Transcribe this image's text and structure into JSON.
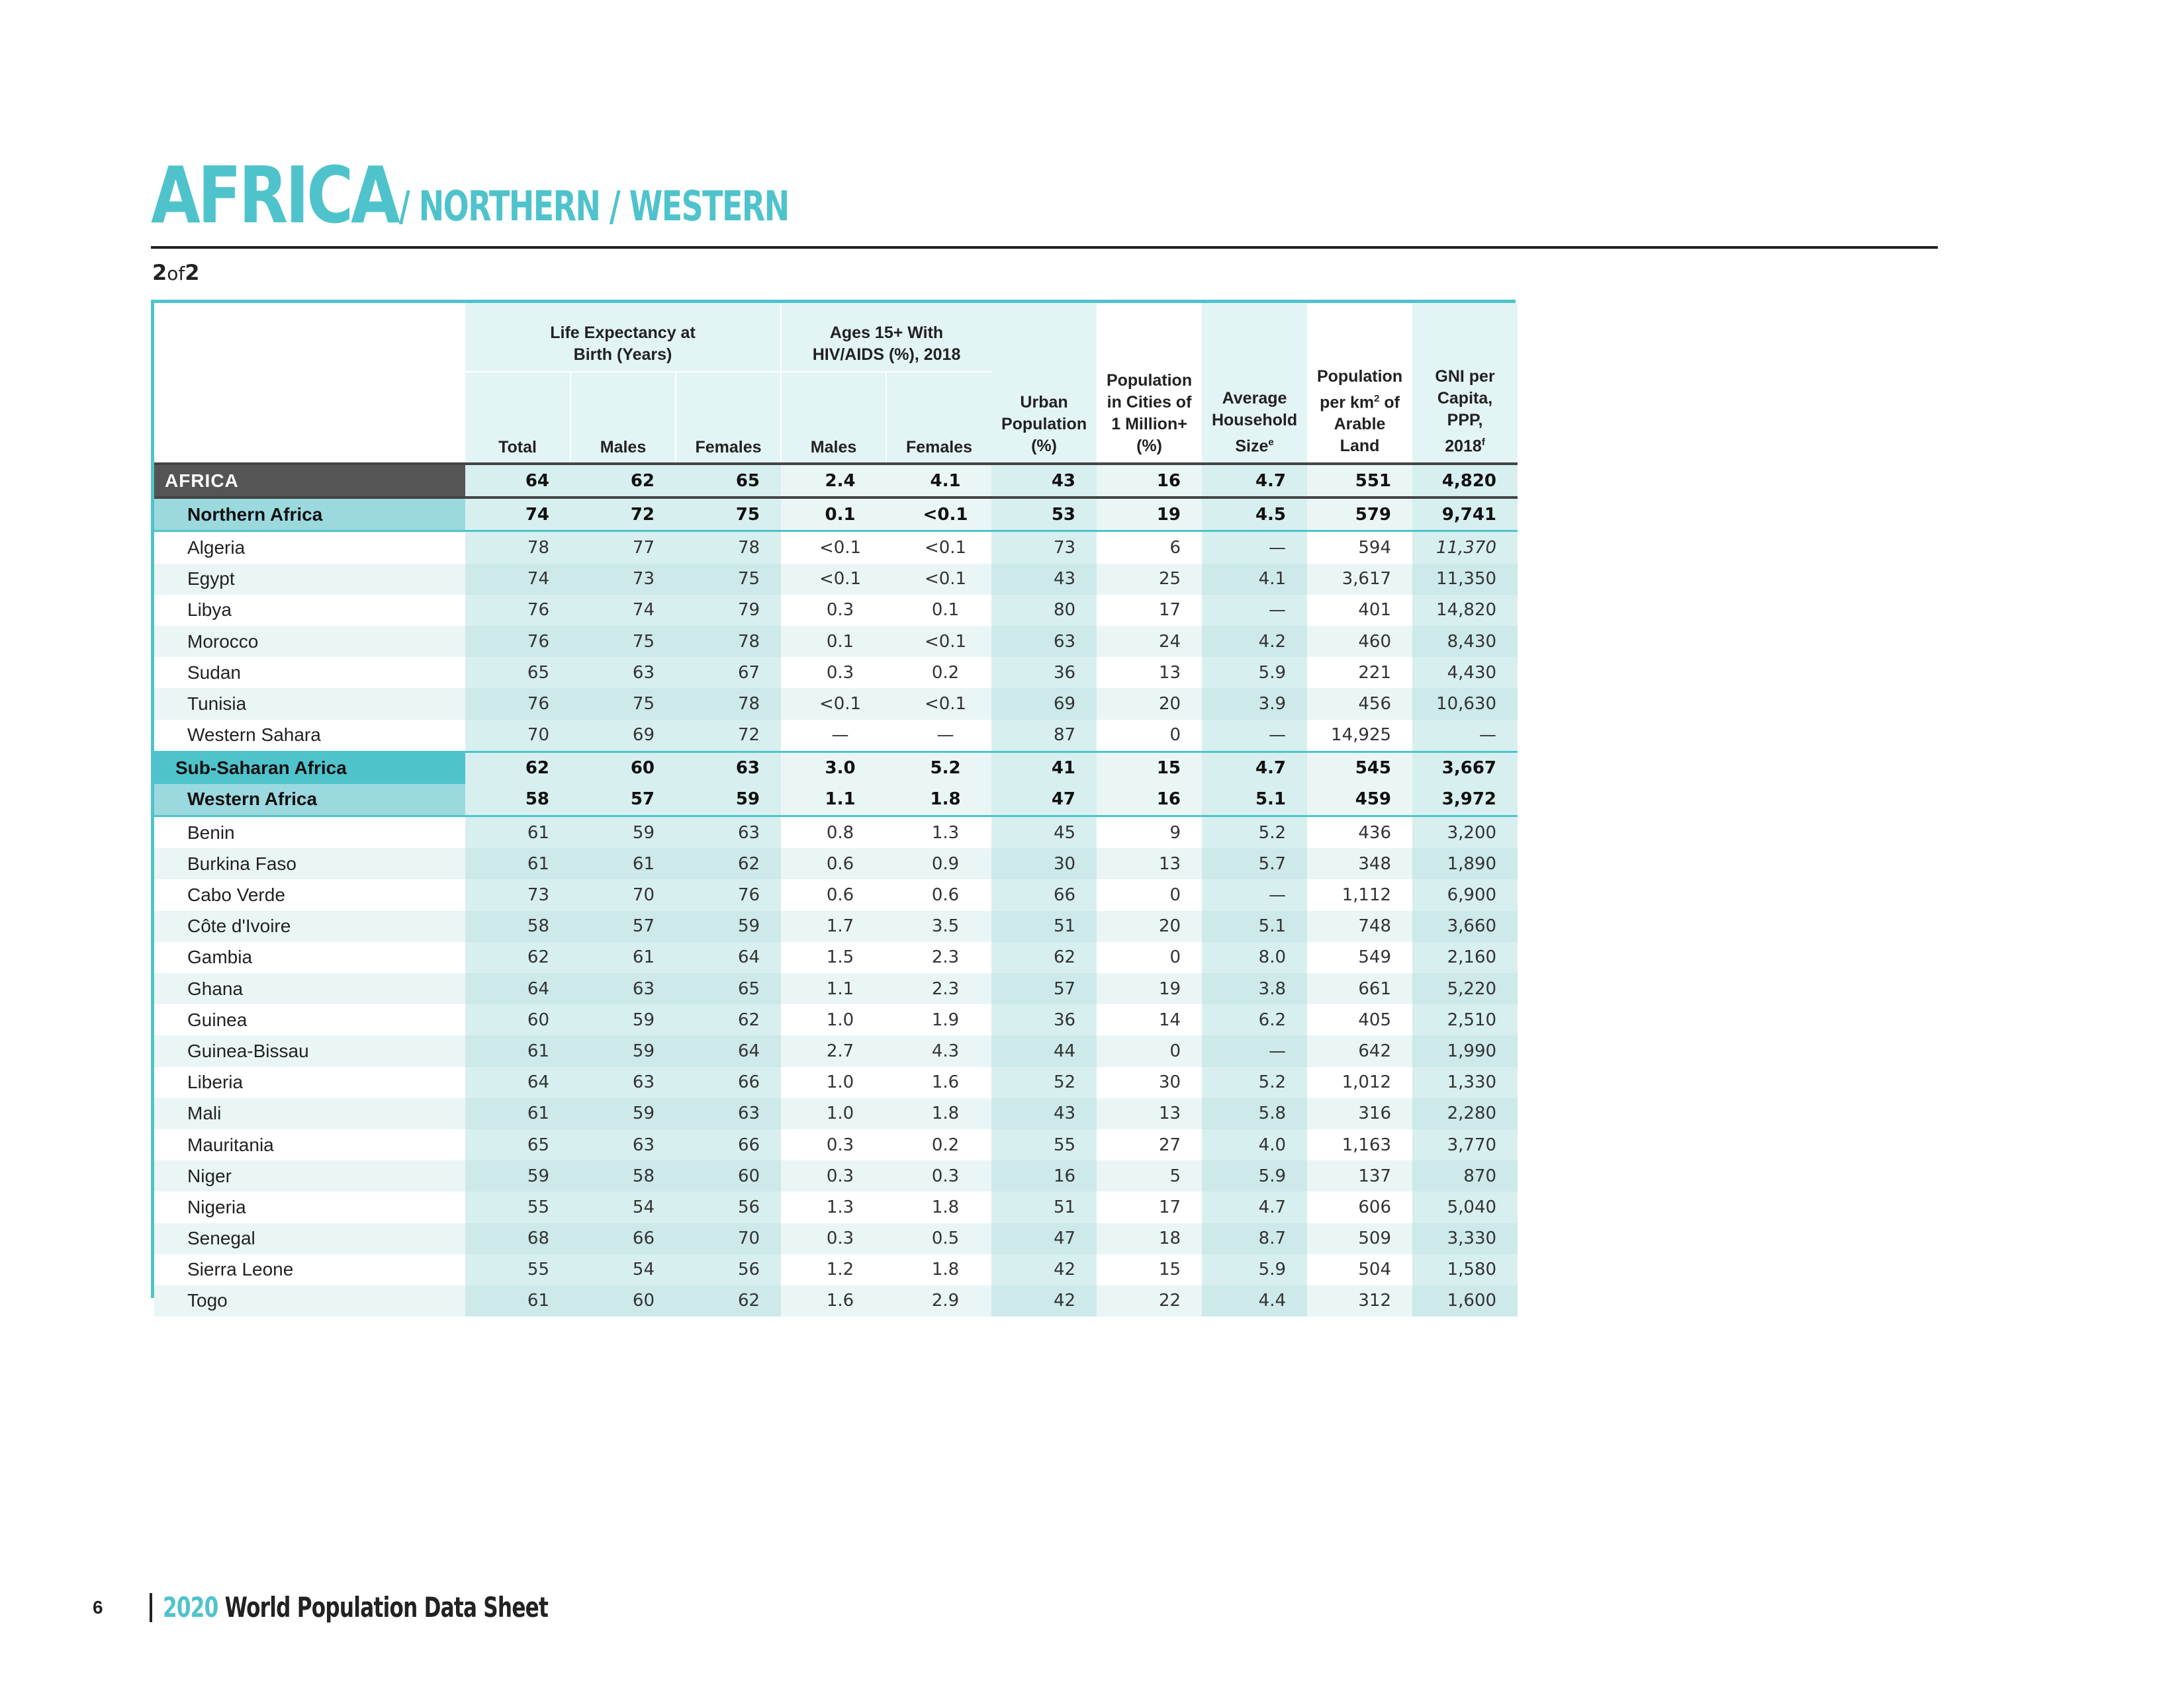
{
  "header": {
    "title": "AFRICA",
    "subtitle": "/ NORTHERN / WESTERN",
    "page_num": "2",
    "page_of": "of",
    "page_total": "2"
  },
  "table": {
    "group_life": "Life Expectancy at Birth (Years)",
    "group_hiv": "Ages 15+ With HIV/AIDS (%), 2018",
    "col_total": "Total",
    "col_males": "Males",
    "col_females": "Females",
    "col_hiv_males": "Males",
    "col_hiv_females": "Females",
    "col_urban": "Urban Population (%)",
    "col_cities": "Population in Cities of 1 Million+ (%)",
    "col_household": "Average Household Size",
    "col_household_sup": "e",
    "col_density_a": "Population per km",
    "col_density_sup": "2",
    "col_density_b": " of Arable Land",
    "col_gni": "GNI per Capita, PPP, 2018",
    "col_gni_sup": "f",
    "rows": [
      {
        "name": "AFRICA",
        "kind": "africa",
        "v": [
          "64",
          "62",
          "65",
          "2.4",
          "4.1",
          "43",
          "16",
          "4.7",
          "551",
          "4,820"
        ]
      },
      {
        "name": "Northern Africa",
        "kind": "region",
        "v": [
          "74",
          "72",
          "75",
          "0.1",
          "<0.1",
          "53",
          "19",
          "4.5",
          "579",
          "9,741"
        ]
      },
      {
        "name": "Algeria",
        "kind": "data",
        "v": [
          "78",
          "77",
          "78",
          "<0.1",
          "<0.1",
          "73",
          "6",
          "—",
          "594",
          "11,370"
        ],
        "gni_italic": true
      },
      {
        "name": "Egypt",
        "kind": "data",
        "v": [
          "74",
          "73",
          "75",
          "<0.1",
          "<0.1",
          "43",
          "25",
          "4.1",
          "3,617",
          "11,350"
        ]
      },
      {
        "name": "Libya",
        "kind": "data",
        "v": [
          "76",
          "74",
          "79",
          "0.3",
          "0.1",
          "80",
          "17",
          "—",
          "401",
          "14,820"
        ]
      },
      {
        "name": "Morocco",
        "kind": "data",
        "v": [
          "76",
          "75",
          "78",
          "0.1",
          "<0.1",
          "63",
          "24",
          "4.2",
          "460",
          "8,430"
        ]
      },
      {
        "name": "Sudan",
        "kind": "data",
        "v": [
          "65",
          "63",
          "67",
          "0.3",
          "0.2",
          "36",
          "13",
          "5.9",
          "221",
          "4,430"
        ]
      },
      {
        "name": "Tunisia",
        "kind": "data",
        "v": [
          "76",
          "75",
          "78",
          "<0.1",
          "<0.1",
          "69",
          "20",
          "3.9",
          "456",
          "10,630"
        ]
      },
      {
        "name": "Western Sahara",
        "kind": "data",
        "v": [
          "70",
          "69",
          "72",
          "—",
          "—",
          "87",
          "0",
          "—",
          "14,925",
          "—"
        ]
      },
      {
        "name": "Sub-Saharan Africa",
        "kind": "sub",
        "v": [
          "62",
          "60",
          "63",
          "3.0",
          "5.2",
          "41",
          "15",
          "4.7",
          "545",
          "3,667"
        ]
      },
      {
        "name": "Western Africa",
        "kind": "region",
        "v": [
          "58",
          "57",
          "59",
          "1.1",
          "1.8",
          "47",
          "16",
          "5.1",
          "459",
          "3,972"
        ]
      },
      {
        "name": "Benin",
        "kind": "data",
        "v": [
          "61",
          "59",
          "63",
          "0.8",
          "1.3",
          "45",
          "9",
          "5.2",
          "436",
          "3,200"
        ]
      },
      {
        "name": "Burkina Faso",
        "kind": "data",
        "v": [
          "61",
          "61",
          "62",
          "0.6",
          "0.9",
          "30",
          "13",
          "5.7",
          "348",
          "1,890"
        ]
      },
      {
        "name": "Cabo Verde",
        "kind": "data",
        "v": [
          "73",
          "70",
          "76",
          "0.6",
          "0.6",
          "66",
          "0",
          "—",
          "1,112",
          "6,900"
        ]
      },
      {
        "name": "Côte d'Ivoire",
        "kind": "data",
        "v": [
          "58",
          "57",
          "59",
          "1.7",
          "3.5",
          "51",
          "20",
          "5.1",
          "748",
          "3,660"
        ]
      },
      {
        "name": "Gambia",
        "kind": "data",
        "v": [
          "62",
          "61",
          "64",
          "1.5",
          "2.3",
          "62",
          "0",
          "8.0",
          "549",
          "2,160"
        ]
      },
      {
        "name": "Ghana",
        "kind": "data",
        "v": [
          "64",
          "63",
          "65",
          "1.1",
          "2.3",
          "57",
          "19",
          "3.8",
          "661",
          "5,220"
        ]
      },
      {
        "name": "Guinea",
        "kind": "data",
        "v": [
          "60",
          "59",
          "62",
          "1.0",
          "1.9",
          "36",
          "14",
          "6.2",
          "405",
          "2,510"
        ]
      },
      {
        "name": "Guinea-Bissau",
        "kind": "data",
        "v": [
          "61",
          "59",
          "64",
          "2.7",
          "4.3",
          "44",
          "0",
          "—",
          "642",
          "1,990"
        ]
      },
      {
        "name": "Liberia",
        "kind": "data",
        "v": [
          "64",
          "63",
          "66",
          "1.0",
          "1.6",
          "52",
          "30",
          "5.2",
          "1,012",
          "1,330"
        ]
      },
      {
        "name": "Mali",
        "kind": "data",
        "v": [
          "61",
          "59",
          "63",
          "1.0",
          "1.8",
          "43",
          "13",
          "5.8",
          "316",
          "2,280"
        ]
      },
      {
        "name": "Mauritania",
        "kind": "data",
        "v": [
          "65",
          "63",
          "66",
          "0.3",
          "0.2",
          "55",
          "27",
          "4.0",
          "1,163",
          "3,770"
        ]
      },
      {
        "name": "Niger",
        "kind": "data",
        "v": [
          "59",
          "58",
          "60",
          "0.3",
          "0.3",
          "16",
          "5",
          "5.9",
          "137",
          "870"
        ]
      },
      {
        "name": "Nigeria",
        "kind": "data",
        "v": [
          "55",
          "54",
          "56",
          "1.3",
          "1.8",
          "51",
          "17",
          "4.7",
          "606",
          "5,040"
        ]
      },
      {
        "name": "Senegal",
        "kind": "data",
        "v": [
          "68",
          "66",
          "70",
          "0.3",
          "0.5",
          "47",
          "18",
          "8.7",
          "509",
          "3,330"
        ]
      },
      {
        "name": "Sierra Leone",
        "kind": "data",
        "v": [
          "55",
          "54",
          "56",
          "1.2",
          "1.8",
          "42",
          "15",
          "5.9",
          "504",
          "1,580"
        ]
      },
      {
        "name": "Togo",
        "kind": "data",
        "v": [
          "61",
          "60",
          "62",
          "1.6",
          "2.9",
          "42",
          "22",
          "4.4",
          "312",
          "1,600"
        ]
      }
    ]
  },
  "footer": {
    "page_number": "6",
    "year": "2020",
    "title": " World Population Data Sheet"
  }
}
